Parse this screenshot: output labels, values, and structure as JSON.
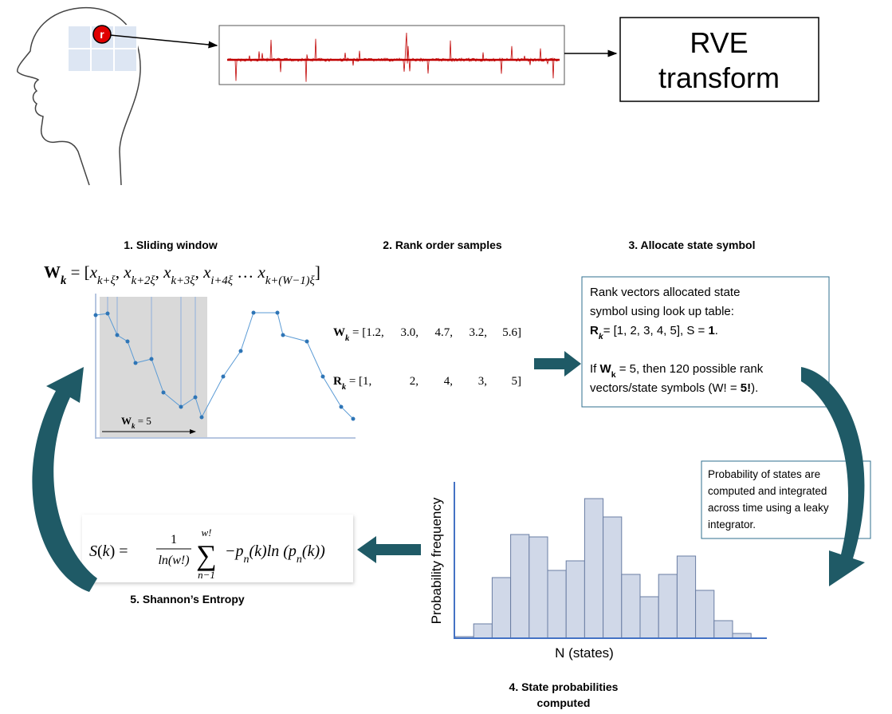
{
  "electrode_label": "r",
  "rve_box": {
    "lines": [
      "RVE",
      "transform"
    ]
  },
  "steps": {
    "sliding_window": "1. Sliding window",
    "rank_order": "2. Rank order samples",
    "allocate": "3. Allocate state symbol",
    "probabilities": [
      "4. State probabilities",
      "computed"
    ],
    "entropy": "5. Shannon’s Entropy"
  },
  "window_formula": [
    {
      "text": "W",
      "bold": true
    },
    {
      "text": "k",
      "sub": true,
      "bold": true,
      "italic": true
    },
    {
      "text": " = ["
    },
    {
      "text": "x",
      "italic": true
    },
    {
      "text": "k+ξ",
      "sub": true,
      "italic": true
    },
    {
      "text": ", "
    },
    {
      "text": "x",
      "italic": true
    },
    {
      "text": "k+2ξ",
      "sub": true,
      "italic": true
    },
    {
      "text": ", "
    },
    {
      "text": "x",
      "italic": true
    },
    {
      "text": "k+3ξ",
      "sub": true,
      "italic": true
    },
    {
      "text": ", "
    },
    {
      "text": "x",
      "italic": true
    },
    {
      "text": "i+4ξ",
      "sub": true,
      "italic": true
    },
    {
      "text": " … "
    },
    {
      "text": "x",
      "italic": true
    },
    {
      "text": "k+(W−1)ξ",
      "sub": true,
      "italic": true
    },
    {
      "text": "]"
    }
  ],
  "window_size": [
    {
      "text": "W",
      "bold": true
    },
    {
      "text": "k",
      "sub": true,
      "bold": true,
      "italic": true
    },
    {
      "text": " = 5"
    }
  ],
  "rank_rows": [
    {
      "label": [
        {
          "text": "W",
          "bold": true
        },
        {
          "text": "k",
          "sub": true,
          "bold": true,
          "italic": true
        },
        {
          "text": " = [1.2,"
        }
      ],
      "values": [
        "3.0,",
        "4.7,",
        "3.2,",
        "5.6]"
      ]
    },
    {
      "label": [
        {
          "text": "R",
          "bold": true
        },
        {
          "text": "k",
          "sub": true,
          "bold": true,
          "italic": true
        },
        {
          "text": " = [1,"
        }
      ],
      "values": [
        "2,",
        "4,",
        "3,",
        "5]"
      ]
    }
  ],
  "state_box": {
    "lines": [
      [
        {
          "text": "Rank vectors allocated state"
        }
      ],
      [
        {
          "text": "symbol using look up table:"
        }
      ],
      [
        {
          "text": "R",
          "bold": true
        },
        {
          "text": "k",
          "sub": true,
          "bold": true,
          "italic": true
        },
        {
          "text": "= [1, 2, 3, 4, 5], S = "
        },
        {
          "text": "1",
          "bold": true
        },
        {
          "text": "."
        }
      ],
      [],
      [
        {
          "text": "If  "
        },
        {
          "text": "W",
          "bold": true
        },
        {
          "text": "k",
          "sub": true,
          "bold": true
        },
        {
          "text": " = 5, then 120 possible rank"
        }
      ],
      [
        {
          "text": "vectors/state symbols (W! = "
        },
        {
          "text": "5!",
          "bold": true
        },
        {
          "text": ")."
        }
      ]
    ]
  },
  "integrator_note": {
    "lines": [
      "Probability of states are",
      "computed and integrated",
      "across time using a leaky",
      "integrator."
    ]
  },
  "histogram": {
    "y_label": "Probability frequency",
    "x_label": "N (states)"
  },
  "entropy_formula": {
    "lhs": [
      {
        "text": "S",
        "italic": true
      },
      {
        "text": "(",
        "italic": false
      },
      {
        "text": "k",
        "italic": true
      },
      {
        "text": ") ="
      }
    ],
    "numerator": "1",
    "denominator": "ln(w!)",
    "sum": "∑",
    "upper": "w!",
    "lower": "n−1",
    "term": [
      {
        "text": "−p",
        "italic": true
      },
      {
        "text": "n",
        "sub": true,
        "italic": true
      },
      {
        "text": "(k)ln (p",
        "italic": true
      },
      {
        "text": "n",
        "sub": true,
        "italic": true
      },
      {
        "text": "(k))",
        "italic": true
      }
    ]
  }
}
